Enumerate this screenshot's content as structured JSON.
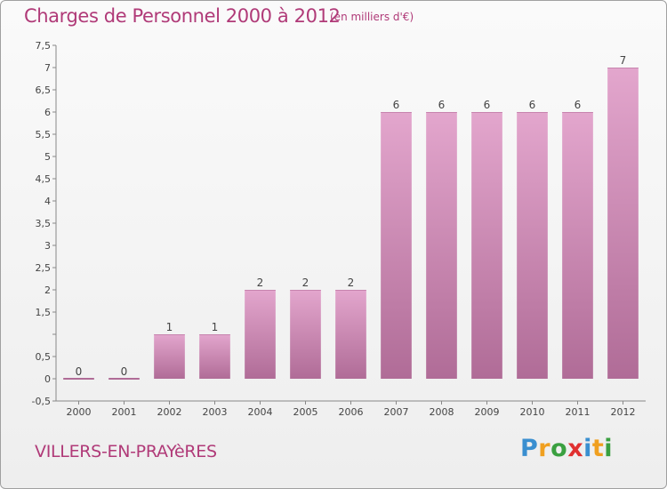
{
  "chart_data": {
    "type": "bar",
    "title": "Charges de Personnel 2000 à 2012",
    "subtitle": "(en milliers d'€)",
    "categories": [
      "2000",
      "2001",
      "2002",
      "2003",
      "2004",
      "2005",
      "2006",
      "2007",
      "2008",
      "2009",
      "2010",
      "2011",
      "2012"
    ],
    "values": [
      0,
      0,
      1,
      1,
      2,
      2,
      2,
      6,
      6,
      6,
      6,
      6,
      7
    ],
    "data_labels": [
      "0",
      "0",
      "1",
      "1",
      "2",
      "2",
      "2",
      "6",
      "6",
      "6",
      "6",
      "6",
      "7"
    ],
    "ylim": [
      -0.5,
      7.5
    ],
    "yticks": [
      -0.5,
      0,
      0.5,
      1,
      1.5,
      2,
      2.5,
      3,
      3.5,
      4,
      4.5,
      5,
      5.5,
      6,
      6.5,
      7,
      7.5
    ],
    "ytick_labels": [
      "-0,5",
      "0",
      "0,5",
      "",
      "1,5",
      "2",
      "2,5",
      "3",
      "3,5",
      "4",
      "4,5",
      "5",
      "5,5",
      "6",
      "6,5",
      "7",
      "7,5"
    ],
    "grid": false,
    "xlabel": "",
    "ylabel": "",
    "colors": {
      "bar_top": "#e3a6cd",
      "bar_bottom": "#b06c97",
      "text_accent": "#b03a78"
    }
  },
  "footer": {
    "town": "VILLERS-EN-PRAYèRES"
  },
  "logo": {
    "letters": [
      "P",
      "r",
      "o",
      "x",
      "i",
      "t",
      "i"
    ],
    "colors": [
      "#3a8fd0",
      "#f0a020",
      "#3aa040",
      "#e03030",
      "#3a8fd0",
      "#f0a020",
      "#3aa040"
    ]
  }
}
